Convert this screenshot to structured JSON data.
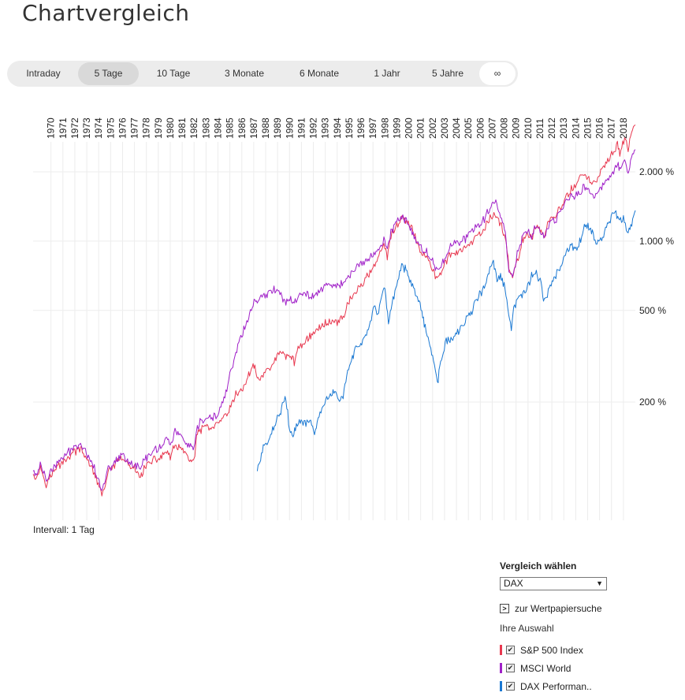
{
  "page": {
    "title": "Chartvergleich"
  },
  "range_buttons": [
    {
      "label": "Intraday"
    },
    {
      "label": "5 Tage"
    },
    {
      "label": "10 Tage"
    },
    {
      "label": "3 Monate"
    },
    {
      "label": "6 Monate"
    },
    {
      "label": "1 Jahr"
    },
    {
      "label": "5 Jahre"
    },
    {
      "label": "∞"
    }
  ],
  "interval_label": "Intervall: 1 Tag",
  "compare": {
    "title": "Vergleich wählen",
    "select_value": "DAX",
    "search_link": "zur Wertpapiersuche",
    "selection_label": "Ihre Auswahl",
    "items": [
      {
        "label": "S&P 500 Index",
        "color": "#e8384f",
        "checked": true
      },
      {
        "label": "MSCI World",
        "color": "#a020c8",
        "checked": true
      },
      {
        "label": "DAX Performan..",
        "color": "#1a78d2",
        "checked": true
      }
    ]
  },
  "chart_data": {
    "type": "line",
    "y_scale": "log",
    "y_ticks": [
      {
        "value": 200,
        "label": "200 %"
      },
      {
        "value": 500,
        "label": "500 %"
      },
      {
        "value": 1000,
        "label": "1.000 %"
      },
      {
        "value": 2000,
        "label": "2.000 %"
      }
    ],
    "x_ticks": [
      "1970",
      "1971",
      "1972",
      "1973",
      "1974",
      "1975",
      "1976",
      "1977",
      "1978",
      "1979",
      "1980",
      "1981",
      "1982",
      "1983",
      "1984",
      "1985",
      "1986",
      "1987",
      "1988",
      "1989",
      "1990",
      "1991",
      "1992",
      "1993",
      "1994",
      "1995",
      "1996",
      "1997",
      "1998",
      "1999",
      "2000",
      "2001",
      "2002",
      "2003",
      "2004",
      "2005",
      "2006",
      "2007",
      "2008",
      "2009",
      "2010",
      "2011",
      "2012",
      "2013",
      "2014",
      "2015",
      "2016",
      "2017",
      "2018"
    ],
    "grid": true,
    "series": [
      {
        "name": "S&P 500 Index",
        "color": "#e8384f",
        "x": [
          1969.0,
          1969.3,
          1969.6,
          1970.1,
          1970.5,
          1971.0,
          1971.5,
          1972.0,
          1972.5,
          1972.9,
          1973.3,
          1973.8,
          1974.3,
          1974.7,
          1974.9,
          1975.3,
          1975.9,
          1976.5,
          1977.0,
          1977.5,
          1978.0,
          1978.3,
          1978.7,
          1979.2,
          1979.7,
          1980.2,
          1980.5,
          1980.9,
          1981.3,
          1981.8,
          1982.2,
          1982.5,
          1982.7,
          1983.0,
          1983.5,
          1984.0,
          1984.5,
          1985.0,
          1985.5,
          1986.0,
          1986.5,
          1987.0,
          1987.6,
          1987.8,
          1988.2,
          1988.7,
          1989.2,
          1989.7,
          1990.2,
          1990.6,
          1990.9,
          1991.3,
          1991.9,
          1992.5,
          1993.0,
          1993.5,
          1994.0,
          1994.5,
          1995.0,
          1995.5,
          1996.0,
          1996.5,
          1997.0,
          1997.5,
          1998.0,
          1998.5,
          1998.7,
          1999.0,
          1999.5,
          2000.0,
          2000.3,
          2000.7,
          2001.2,
          2001.7,
          2002.0,
          2002.5,
          2002.8,
          2003.2,
          2003.6,
          2004.0,
          2004.5,
          2005.0,
          2005.5,
          2006.0,
          2006.5,
          2007.0,
          2007.4,
          2007.8,
          2008.2,
          2008.6,
          2008.9,
          2009.2,
          2009.6,
          2010.0,
          2010.4,
          2010.8,
          2011.2,
          2011.6,
          2011.9,
          2012.3,
          2012.8,
          2013.3,
          2013.8,
          2014.3,
          2014.8,
          2015.2,
          2015.6,
          2016.1,
          2016.6,
          2017.1,
          2017.6,
          2018.0,
          2018.2,
          2018.6,
          2018.9,
          2019.1,
          2019.5
        ],
        "y": [
          100,
          93,
          105,
          89,
          96,
          104,
          110,
          116,
          122,
          126,
          116,
          108,
          92,
          80,
          83,
          98,
          108,
          114,
          106,
          102,
          95,
          103,
          108,
          112,
          115,
          123,
          114,
          130,
          126,
          118,
          112,
          110,
          140,
          150,
          158,
          152,
          160,
          170,
          185,
          215,
          225,
          255,
          295,
          250,
          260,
          275,
          300,
          330,
          315,
          320,
          300,
          345,
          375,
          395,
          420,
          440,
          450,
          445,
          470,
          550,
          600,
          640,
          700,
          770,
          870,
          950,
          840,
          1050,
          1180,
          1250,
          1220,
          1150,
          980,
          880,
          870,
          750,
          690,
          720,
          820,
          870,
          900,
          920,
          940,
          1020,
          1060,
          1180,
          1280,
          1300,
          1180,
          1050,
          780,
          680,
          820,
          1000,
          1080,
          1040,
          1170,
          1100,
          1070,
          1240,
          1270,
          1430,
          1580,
          1710,
          1880,
          1930,
          1850,
          1780,
          1990,
          2200,
          2370,
          2650,
          2450,
          2800,
          2500,
          2850,
          3200
        ]
      },
      {
        "name": "MSCI World",
        "color": "#a020c8",
        "x": [
          1969.0,
          1969.3,
          1969.6,
          1970.1,
          1970.5,
          1971.0,
          1971.5,
          1972.0,
          1972.5,
          1972.9,
          1973.3,
          1973.8,
          1974.3,
          1974.7,
          1974.9,
          1975.3,
          1975.9,
          1976.5,
          1977.0,
          1977.5,
          1978.0,
          1978.3,
          1978.7,
          1979.2,
          1979.7,
          1980.2,
          1980.5,
          1980.9,
          1981.3,
          1981.8,
          1982.2,
          1982.5,
          1982.7,
          1983.0,
          1983.5,
          1984.0,
          1984.5,
          1985.0,
          1985.5,
          1986.0,
          1986.5,
          1987.0,
          1987.6,
          1987.8,
          1988.2,
          1988.7,
          1989.2,
          1989.7,
          1990.2,
          1990.6,
          1990.9,
          1991.3,
          1991.9,
          1992.5,
          1993.0,
          1993.5,
          1994.0,
          1994.5,
          1995.0,
          1995.5,
          1996.0,
          1996.5,
          1997.0,
          1997.5,
          1998.0,
          1998.5,
          1998.7,
          1999.0,
          1999.5,
          2000.0,
          2000.3,
          2000.7,
          2001.2,
          2001.7,
          2002.0,
          2002.5,
          2002.8,
          2003.2,
          2003.6,
          2004.0,
          2004.5,
          2005.0,
          2005.5,
          2006.0,
          2006.5,
          2007.0,
          2007.4,
          2007.8,
          2008.2,
          2008.6,
          2008.9,
          2009.2,
          2009.6,
          2010.0,
          2010.4,
          2010.8,
          2011.2,
          2011.6,
          2011.9,
          2012.3,
          2012.8,
          2013.3,
          2013.8,
          2014.3,
          2014.8,
          2015.2,
          2015.6,
          2016.1,
          2016.6,
          2017.1,
          2017.6,
          2018.0,
          2018.2,
          2018.6,
          2018.9,
          2019.1,
          2019.5
        ],
        "y": [
          100,
          96,
          108,
          92,
          99,
          108,
          115,
          121,
          128,
          133,
          124,
          114,
          98,
          84,
          87,
          102,
          112,
          118,
          111,
          107,
          102,
          112,
          118,
          124,
          128,
          140,
          130,
          150,
          143,
          134,
          126,
          122,
          150,
          162,
          170,
          168,
          178,
          205,
          260,
          330,
          390,
          455,
          560,
          540,
          570,
          590,
          620,
          600,
          540,
          570,
          545,
          575,
          590,
          580,
          610,
          640,
          650,
          640,
          660,
          700,
          760,
          790,
          830,
          880,
          930,
          1020,
          900,
          1100,
          1220,
          1260,
          1240,
          1120,
          1000,
          900,
          900,
          830,
          740,
          770,
          880,
          950,
          990,
          1010,
          1050,
          1130,
          1170,
          1300,
          1420,
          1480,
          1300,
          1080,
          760,
          690,
          880,
          1040,
          1120,
          1060,
          1180,
          1080,
          1040,
          1180,
          1220,
          1380,
          1520,
          1570,
          1620,
          1720,
          1640,
          1560,
          1680,
          1860,
          1990,
          2200,
          2050,
          2250,
          1950,
          2250,
          2500
        ]
      },
      {
        "name": "DAX Performan..",
        "color": "#1a78d2",
        "x": [
          1987.8,
          1988.0,
          1988.3,
          1988.7,
          1989.0,
          1989.4,
          1989.7,
          1989.9,
          1990.2,
          1990.5,
          1990.8,
          1991.0,
          1991.4,
          1991.8,
          1992.2,
          1992.6,
          1992.9,
          1993.3,
          1993.7,
          1994.0,
          1994.3,
          1994.7,
          1995.0,
          1995.3,
          1995.7,
          1996.0,
          1996.4,
          1996.8,
          1997.2,
          1997.6,
          1997.9,
          1998.2,
          1998.5,
          1998.8,
          1999.1,
          1999.5,
          1999.9,
          2000.2,
          2000.5,
          2000.9,
          2001.3,
          2001.6,
          2001.8,
          2002.2,
          2002.5,
          2002.9,
          2003.1,
          2003.4,
          2003.8,
          2004.2,
          2004.6,
          2005.0,
          2005.4,
          2005.8,
          2006.2,
          2006.6,
          2007.0,
          2007.3,
          2007.6,
          2007.9,
          2008.2,
          2008.5,
          2008.8,
          2009.1,
          2009.3,
          2009.6,
          2010.0,
          2010.4,
          2010.8,
          2011.2,
          2011.6,
          2011.8,
          2012.2,
          2012.6,
          2013.0,
          2013.4,
          2013.8,
          2014.2,
          2014.6,
          2015.0,
          2015.3,
          2015.6,
          2015.9,
          2016.2,
          2016.6,
          2017.0,
          2017.4,
          2017.8,
          2018.1,
          2018.5,
          2018.9,
          2019.2,
          2019.5
        ],
        "y": [
          100,
          112,
          125,
          135,
          150,
          165,
          180,
          195,
          210,
          150,
          140,
          155,
          165,
          160,
          165,
          150,
          165,
          190,
          210,
          215,
          220,
          200,
          215,
          260,
          300,
          340,
          360,
          380,
          420,
          520,
          460,
          560,
          620,
          440,
          540,
          650,
          780,
          760,
          700,
          640,
          560,
          500,
          430,
          370,
          320,
          240,
          280,
          340,
          380,
          370,
          400,
          420,
          470,
          500,
          560,
          600,
          660,
          770,
          800,
          680,
          700,
          640,
          520,
          410,
          500,
          560,
          590,
          620,
          700,
          720,
          650,
          540,
          600,
          690,
          730,
          810,
          900,
          960,
          920,
          1040,
          1180,
          1150,
          1080,
          950,
          1030,
          1120,
          1250,
          1350,
          1250,
          1240,
          1060,
          1210,
          1360
        ]
      }
    ]
  }
}
